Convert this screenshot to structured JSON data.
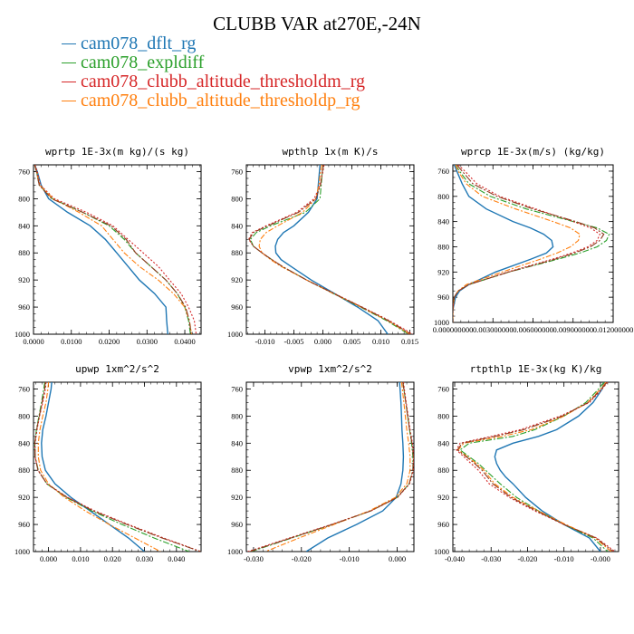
{
  "title": "CLUBB VAR at270E,-24N",
  "legend": [
    {
      "label": "cam078_dflt_rg",
      "color": "#1f77b4",
      "dash": "solid"
    },
    {
      "label": "cam078_expldiff",
      "color": "#2ca02c",
      "dash": "dashdot"
    },
    {
      "label": "cam078_clubb_altitude_thresholdm_rg",
      "color": "#d62728",
      "dash": "dotted"
    },
    {
      "label": "cam078_clubb_altitude_thresholdp_rg",
      "color": "#ff7f0e",
      "dash": "dashdot"
    }
  ],
  "chart_data": [
    {
      "type": "line",
      "title": "wprtp  1E-3x(m kg)/(s kg)",
      "ylim": [
        1000,
        750
      ],
      "xlim": [
        0.0,
        0.0443
      ],
      "yticks": [
        "760",
        "800",
        "840",
        "880",
        "920",
        "960",
        "1000"
      ],
      "xticks": [
        0.0,
        0.01,
        0.02,
        0.03,
        0.04
      ],
      "xtick_labels": [
        "0.0000",
        "0.0100",
        "0.0200",
        "0.0300",
        "0.0400"
      ],
      "y": [
        750,
        760,
        780,
        800,
        820,
        840,
        860,
        880,
        900,
        920,
        940,
        960,
        980,
        1000
      ],
      "series": [
        {
          "color": "#1f77b4",
          "x": [
            0.0003,
            0.001,
            0.002,
            0.004,
            0.009,
            0.015,
            0.019,
            0.022,
            0.025,
            0.028,
            0.032,
            0.035,
            0.0352,
            0.0355
          ]
        },
        {
          "color": "#2ca02c",
          "x": [
            0.0003,
            0.0008,
            0.0015,
            0.005,
            0.013,
            0.02,
            0.024,
            0.027,
            0.031,
            0.035,
            0.038,
            0.04,
            0.041,
            0.0415
          ]
        },
        {
          "color": "#d62728",
          "x": [
            0.0004,
            0.001,
            0.0018,
            0.0055,
            0.014,
            0.021,
            0.025,
            0.029,
            0.033,
            0.036,
            0.039,
            0.041,
            0.0425,
            0.043
          ]
        },
        {
          "color": "#ff7f0e",
          "x": [
            0.0003,
            0.0008,
            0.0016,
            0.0052,
            0.012,
            0.018,
            0.021,
            0.024,
            0.028,
            0.033,
            0.037,
            0.04,
            0.0412,
            0.0418
          ]
        },
        {
          "color": "#8c3b1e",
          "x": [
            0.0003,
            0.0008,
            0.0015,
            0.0048,
            0.013,
            0.0205,
            0.0245,
            0.027,
            0.031,
            0.035,
            0.038,
            0.0402,
            0.0412,
            0.0417
          ]
        }
      ]
    },
    {
      "type": "line",
      "title": "wpthlp  1x(m K)/s",
      "ylim": [
        1000,
        750
      ],
      "xlim": [
        -0.0132,
        0.0157
      ],
      "yticks": [
        "760",
        "800",
        "840",
        "880",
        "920",
        "960",
        "1000"
      ],
      "xticks": [
        -0.01,
        -0.005,
        0.0,
        0.005,
        0.01,
        0.015
      ],
      "xtick_labels": [
        "-0.010",
        "-0.005",
        "0.000",
        "0.005",
        "0.010",
        "0.015"
      ],
      "y": [
        750,
        760,
        780,
        800,
        820,
        840,
        850,
        860,
        870,
        880,
        890,
        900,
        920,
        940,
        960,
        980,
        1000
      ],
      "series": [
        {
          "color": "#1f77b4",
          "x": [
            -0.0005,
            -0.0006,
            -0.0008,
            -0.001,
            -0.0025,
            -0.005,
            -0.0068,
            -0.0078,
            -0.0082,
            -0.0081,
            -0.0072,
            -0.0055,
            -0.002,
            0.002,
            0.006,
            0.0095,
            0.0112
          ]
        },
        {
          "color": "#2ca02c",
          "x": [
            0.0001,
            -0.0001,
            -0.0003,
            -0.0005,
            -0.003,
            -0.009,
            -0.0115,
            -0.0125,
            -0.012,
            -0.0105,
            -0.0088,
            -0.007,
            -0.0028,
            0.0018,
            0.0065,
            0.011,
            0.0148
          ]
        },
        {
          "color": "#d62728",
          "x": [
            0.0002,
            0.0,
            -0.0005,
            -0.0015,
            -0.0045,
            -0.0098,
            -0.0122,
            -0.0128,
            -0.012,
            -0.0105,
            -0.0088,
            -0.007,
            -0.0028,
            0.002,
            0.0068,
            0.0115,
            0.0155
          ]
        },
        {
          "color": "#ff7f0e",
          "x": [
            -0.0002,
            -0.0004,
            -0.0007,
            -0.0012,
            -0.0035,
            -0.0078,
            -0.0098,
            -0.0108,
            -0.011,
            -0.0105,
            -0.009,
            -0.0072,
            -0.0028,
            0.0018,
            0.0066,
            0.0112,
            0.015
          ]
        },
        {
          "color": "#8c3b1e",
          "x": [
            0.0001,
            -0.0001,
            -0.0004,
            -0.0012,
            -0.0042,
            -0.0095,
            -0.012,
            -0.0127,
            -0.012,
            -0.0105,
            -0.0088,
            -0.007,
            -0.0028,
            0.0019,
            0.0067,
            0.0113,
            0.0152
          ]
        }
      ]
    },
    {
      "type": "line",
      "title": "wprcp  1E-3x(m/s) (kg/kg)",
      "ylim": [
        1000,
        750
      ],
      "xlim": [
        0.0,
        0.012
      ],
      "yticks": [
        "760",
        "800",
        "840",
        "880",
        "920",
        "960",
        "1000"
      ],
      "xticks": [
        0.0,
        0.003,
        0.006,
        0.009,
        0.012
      ],
      "xtick_labels": [
        "0.000000000",
        "0.003000000",
        "0.006000000",
        "0.009000000",
        "0.012000000"
      ],
      "y": [
        750,
        760,
        780,
        800,
        820,
        840,
        850,
        860,
        870,
        880,
        890,
        900,
        920,
        940,
        950,
        960,
        980,
        1000
      ],
      "series": [
        {
          "color": "#1f77b4",
          "x": [
            0.0001,
            0.0003,
            0.0007,
            0.0012,
            0.0025,
            0.0045,
            0.0058,
            0.0068,
            0.0074,
            0.0075,
            0.007,
            0.0058,
            0.0032,
            0.0012,
            0.0005,
            0.0002,
            0.0,
            0.0
          ]
        },
        {
          "color": "#2ca02c",
          "x": [
            0.0002,
            0.0005,
            0.0012,
            0.0028,
            0.0055,
            0.009,
            0.0108,
            0.0117,
            0.0115,
            0.0108,
            0.0095,
            0.0078,
            0.0042,
            0.0012,
            0.0004,
            0.0001,
            0.0,
            0.0
          ]
        },
        {
          "color": "#d62728",
          "x": [
            0.0004,
            0.0009,
            0.0018,
            0.0035,
            0.0062,
            0.009,
            0.0103,
            0.011,
            0.0108,
            0.0101,
            0.0089,
            0.0074,
            0.0041,
            0.0012,
            0.0004,
            0.0001,
            0.0,
            0.0
          ]
        },
        {
          "color": "#ff7f0e",
          "x": [
            0.0002,
            0.0004,
            0.001,
            0.0022,
            0.0047,
            0.0075,
            0.0088,
            0.0095,
            0.0094,
            0.0088,
            0.0078,
            0.0065,
            0.0037,
            0.001,
            0.0004,
            0.0001,
            0.0,
            0.0
          ]
        },
        {
          "color": "#8c3b1e",
          "x": [
            0.0003,
            0.0007,
            0.0015,
            0.0033,
            0.006,
            0.0092,
            0.0106,
            0.0113,
            0.011,
            0.0103,
            0.0091,
            0.0076,
            0.0042,
            0.0012,
            0.0004,
            0.0001,
            0.0,
            0.0
          ]
        }
      ]
    },
    {
      "type": "line",
      "title": "upwp  1xm^2/s^2",
      "ylim": [
        1000,
        750
      ],
      "xlim": [
        -0.0047,
        0.0477
      ],
      "yticks": [
        "760",
        "800",
        "840",
        "880",
        "920",
        "960",
        "1000"
      ],
      "xticks": [
        0.0,
        0.01,
        0.02,
        0.03,
        0.04
      ],
      "xtick_labels": [
        "0.000",
        "0.010",
        "0.020",
        "0.030",
        "0.040"
      ],
      "y": [
        750,
        760,
        780,
        800,
        820,
        840,
        860,
        880,
        900,
        920,
        940,
        960,
        980,
        1000
      ],
      "series": [
        {
          "color": "#1f77b4",
          "x": [
            0.001,
            0.0008,
            0.0,
            -0.0008,
            -0.0018,
            -0.0022,
            -0.002,
            -0.001,
            0.002,
            0.007,
            0.013,
            0.019,
            0.025,
            0.03
          ]
        },
        {
          "color": "#2ca02c",
          "x": [
            -0.0012,
            -0.0015,
            -0.0022,
            -0.003,
            -0.0038,
            -0.0043,
            -0.0042,
            -0.0032,
            -0.0005,
            0.0055,
            0.0135,
            0.023,
            0.033,
            0.044
          ]
        },
        {
          "color": "#d62728",
          "x": [
            -0.0008,
            -0.001,
            -0.0018,
            -0.0028,
            -0.0036,
            -0.0042,
            -0.0042,
            -0.0033,
            -0.0005,
            0.006,
            0.0145,
            0.025,
            0.036,
            0.0477
          ]
        },
        {
          "color": "#ff7f0e",
          "x": [
            0.0,
            -0.0002,
            -0.0008,
            -0.0018,
            -0.0027,
            -0.0032,
            -0.0032,
            -0.0025,
            0.0,
            0.005,
            0.0115,
            0.019,
            0.027,
            0.035
          ]
        },
        {
          "color": "#8c3b1e",
          "x": [
            -0.001,
            -0.0012,
            -0.002,
            -0.0029,
            -0.0037,
            -0.0043,
            -0.0042,
            -0.0033,
            -0.0005,
            0.0058,
            0.014,
            0.0245,
            0.0355,
            0.0475
          ]
        }
      ]
    },
    {
      "type": "line",
      "title": "vpwp  1xm^2/s^2",
      "ylim": [
        1000,
        750
      ],
      "xlim": [
        -0.0315,
        0.0035
      ],
      "yticks": [
        "760",
        "800",
        "840",
        "880",
        "920",
        "960",
        "1000"
      ],
      "xticks": [
        -0.03,
        -0.02,
        -0.01,
        0.0
      ],
      "xtick_labels": [
        "-0.030",
        "-0.020",
        "-0.010",
        "0.000"
      ],
      "y": [
        750,
        760,
        780,
        800,
        820,
        840,
        860,
        880,
        900,
        920,
        940,
        960,
        980,
        1000
      ],
      "series": [
        {
          "color": "#1f77b4",
          "x": [
            0.0005,
            0.0006,
            0.0008,
            0.0009,
            0.001,
            0.0012,
            0.0013,
            0.0012,
            0.0008,
            -0.0002,
            -0.003,
            -0.0085,
            -0.0145,
            -0.019
          ]
        },
        {
          "color": "#2ca02c",
          "x": [
            0.0012,
            0.0014,
            0.0018,
            0.0022,
            0.0026,
            0.003,
            0.0033,
            0.0033,
            0.0025,
            0.0,
            -0.0055,
            -0.0135,
            -0.022,
            -0.0305
          ]
        },
        {
          "color": "#d62728",
          "x": [
            0.0013,
            0.0015,
            0.0019,
            0.0023,
            0.0027,
            0.0032,
            0.0035,
            0.0034,
            0.0026,
            0.0001,
            -0.0055,
            -0.0138,
            -0.0225,
            -0.0312
          ]
        },
        {
          "color": "#ff7f0e",
          "x": [
            0.0009,
            0.0011,
            0.0014,
            0.0017,
            0.002,
            0.0024,
            0.0027,
            0.0027,
            0.002,
            -0.0004,
            -0.0058,
            -0.0132,
            -0.0205,
            -0.0275
          ]
        },
        {
          "color": "#8c3b1e",
          "x": [
            0.0012,
            0.0014,
            0.0018,
            0.0022,
            0.0026,
            0.0031,
            0.0034,
            0.0033,
            0.0025,
            0.0,
            -0.0055,
            -0.0136,
            -0.0222,
            -0.0308
          ]
        }
      ]
    },
    {
      "type": "line",
      "title": "rtpthlp  1E-3x(kg K)/kg",
      "ylim": [
        1000,
        750
      ],
      "xlim": [
        -0.0405,
        0.005
      ],
      "yticks": [
        "760",
        "800",
        "840",
        "880",
        "920",
        "960",
        "1000"
      ],
      "xticks": [
        -0.04,
        -0.03,
        -0.02,
        -0.01,
        0.0
      ],
      "xtick_labels": [
        "-0.040",
        "-0.030",
        "-0.020",
        "-0.010",
        "-0.000"
      ],
      "y": [
        750,
        760,
        780,
        800,
        820,
        830,
        840,
        850,
        860,
        870,
        880,
        890,
        900,
        920,
        940,
        960,
        980,
        1000
      ],
      "series": [
        {
          "color": "#1f77b4",
          "x": [
            0.001,
            0.0005,
            -0.002,
            -0.006,
            -0.012,
            -0.017,
            -0.024,
            -0.0285,
            -0.029,
            -0.0285,
            -0.0275,
            -0.026,
            -0.024,
            -0.0205,
            -0.016,
            -0.01,
            -0.003,
            0.0
          ]
        },
        {
          "color": "#2ca02c",
          "x": [
            0.001,
            -0.0005,
            -0.004,
            -0.01,
            -0.018,
            -0.024,
            -0.036,
            -0.0385,
            -0.036,
            -0.0335,
            -0.0315,
            -0.0295,
            -0.0275,
            -0.023,
            -0.017,
            -0.01,
            -0.002,
            0.002
          ]
        },
        {
          "color": "#d62728",
          "x": [
            0.002,
            0.0005,
            -0.003,
            -0.011,
            -0.022,
            -0.03,
            -0.0385,
            -0.0395,
            -0.0375,
            -0.0355,
            -0.0335,
            -0.032,
            -0.0305,
            -0.025,
            -0.018,
            -0.01,
            -0.001,
            0.004
          ]
        },
        {
          "color": "#ff7f0e",
          "x": [
            0.0015,
            0.0,
            -0.0035,
            -0.01,
            -0.019,
            -0.027,
            -0.0375,
            -0.039,
            -0.0365,
            -0.034,
            -0.032,
            -0.0305,
            -0.029,
            -0.024,
            -0.017,
            -0.0095,
            -0.0015,
            0.003
          ]
        },
        {
          "color": "#8c3b1e",
          "x": [
            0.0018,
            0.0003,
            -0.0033,
            -0.0105,
            -0.021,
            -0.029,
            -0.038,
            -0.0392,
            -0.0368,
            -0.0345,
            -0.0325,
            -0.031,
            -0.0295,
            -0.0245,
            -0.0175,
            -0.01,
            -0.0012,
            0.0035
          ]
        }
      ]
    }
  ]
}
